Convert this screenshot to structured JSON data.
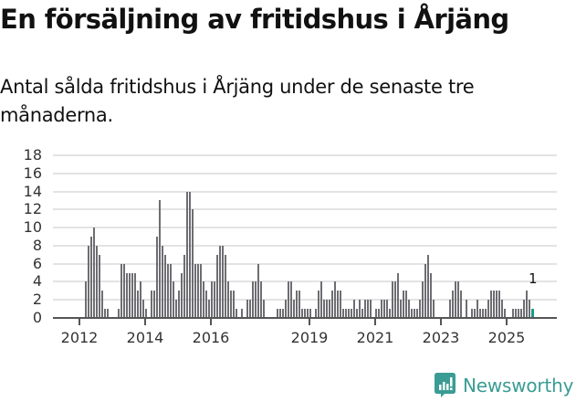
{
  "header": {
    "title": "En försäljning av fritidshus i Årjäng",
    "subtitle": "Antal sålda fritidshus i Årjäng under de senaste tre månaderna."
  },
  "brand": {
    "name": "Newsworthy",
    "color": "#3a9c94",
    "icon": "bar-chart-speech-bubble-icon"
  },
  "colors": {
    "bar": "#6e6d72",
    "highlight": "#1d9a8a",
    "grid": "#e3e3e3",
    "axis": "#555555"
  },
  "chart_data": {
    "type": "bar",
    "title": "En försäljning av fritidshus i Årjäng",
    "subtitle": "Antal sålda fritidshus i Årjäng under de senaste tre månaderna.",
    "xlabel": "",
    "ylabel": "",
    "ylim": [
      0,
      18
    ],
    "yticks": [
      0,
      2,
      4,
      6,
      8,
      10,
      12,
      14,
      16,
      18
    ],
    "grid": true,
    "legend": "none",
    "x_start": "2012-01",
    "x_frequency": "monthly",
    "xticks": [
      {
        "label": "2012",
        "month_index": 0
      },
      {
        "label": "2014",
        "month_index": 24
      },
      {
        "label": "2016",
        "month_index": 48
      },
      {
        "label": "2019",
        "month_index": 84
      },
      {
        "label": "2021",
        "month_index": 108
      },
      {
        "label": "2023",
        "month_index": 132
      },
      {
        "label": "2025",
        "month_index": 156
      }
    ],
    "values": [
      0,
      0,
      4,
      8,
      9,
      10,
      8,
      7,
      3,
      1,
      1,
      0,
      0,
      0,
      1,
      6,
      6,
      5,
      5,
      5,
      5,
      3,
      4,
      2,
      1,
      0,
      3,
      3,
      9,
      13,
      8,
      7,
      6,
      6,
      4,
      2,
      3,
      5,
      7,
      14,
      14,
      12,
      6,
      6,
      6,
      4,
      3,
      2,
      4,
      4,
      7,
      8,
      8,
      7,
      4,
      3,
      3,
      1,
      0,
      1,
      0,
      2,
      2,
      4,
      4,
      6,
      4,
      2,
      0,
      0,
      0,
      0,
      1,
      1,
      1,
      2,
      4,
      4,
      2,
      3,
      3,
      1,
      1,
      1,
      1,
      0,
      1,
      3,
      4,
      2,
      2,
      2,
      3,
      4,
      3,
      3,
      1,
      1,
      1,
      1,
      2,
      1,
      2,
      1,
      2,
      2,
      2,
      0,
      1,
      1,
      2,
      2,
      2,
      1,
      4,
      4,
      5,
      2,
      3,
      3,
      2,
      1,
      1,
      1,
      2,
      4,
      6,
      7,
      5,
      2,
      0,
      0,
      0,
      0,
      0,
      2,
      3,
      4,
      4,
      3,
      0,
      2,
      0,
      1,
      1,
      2,
      1,
      1,
      1,
      2,
      3,
      3,
      3,
      3,
      2,
      1,
      0,
      0,
      1,
      1,
      1,
      1,
      2,
      3,
      2,
      1
    ],
    "highlight_index": 165,
    "annotations": [
      {
        "month_index": 165,
        "text": "1"
      }
    ]
  }
}
